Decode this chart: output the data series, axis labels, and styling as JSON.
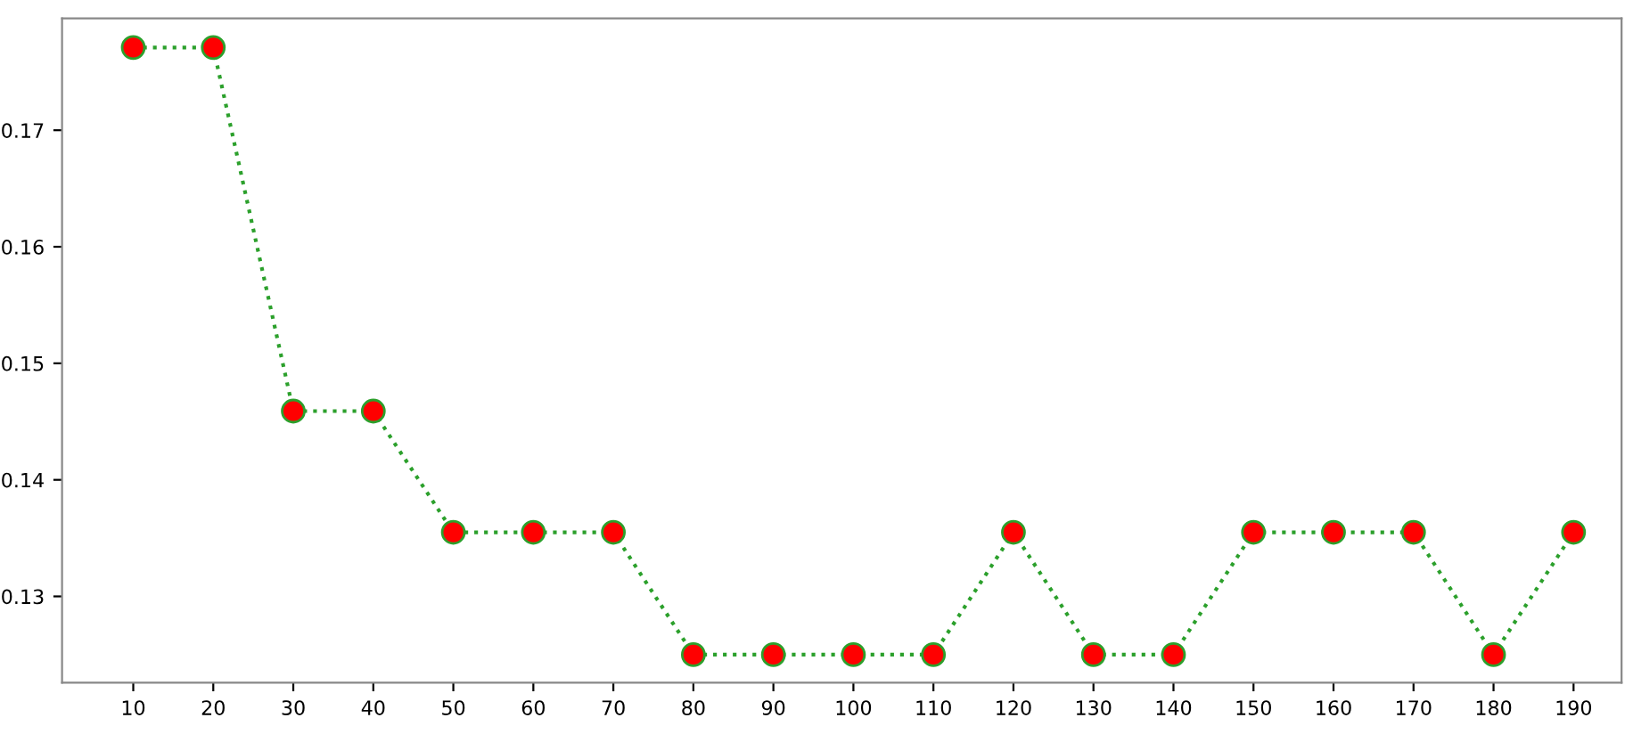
{
  "chart_data": {
    "type": "line",
    "x": [
      10,
      20,
      30,
      40,
      50,
      60,
      70,
      80,
      90,
      100,
      110,
      120,
      130,
      140,
      150,
      160,
      170,
      180,
      190
    ],
    "series": [
      {
        "color": "#2ca02c",
        "colors": [
          "#ff0000",
          "#ff0000",
          "#ff0000",
          "#ff0000",
          "#ff0000",
          "#ff0000",
          "#ff0000",
          "#ff0000",
          "#ff0000",
          "#ff0000",
          "#ff0000",
          "#ff0000",
          "#ff0000",
          "#ff0000",
          "#ff0000",
          "#ff0000",
          "#ff0000",
          "#ff0000",
          "#ff0000"
        ],
        "values": [
          0.1771,
          0.1771,
          0.1459,
          0.1459,
          0.1355,
          0.1355,
          0.1355,
          0.125,
          0.125,
          0.125,
          0.125,
          0.1355,
          0.125,
          0.125,
          0.1355,
          0.1355,
          0.1355,
          0.125,
          0.1355
        ]
      }
    ],
    "xlim": [
      1.1,
      196
    ],
    "ylim": [
      0.1226,
      0.1796
    ],
    "xticks": [
      10,
      20,
      30,
      40,
      50,
      60,
      70,
      80,
      90,
      100,
      110,
      120,
      130,
      140,
      150,
      160,
      170,
      180,
      190
    ],
    "yticks": [
      0.13,
      0.14,
      0.15,
      0.16,
      0.17
    ],
    "marker": "circle",
    "line_style": "dotted",
    "grid": false,
    "legend": false
  }
}
